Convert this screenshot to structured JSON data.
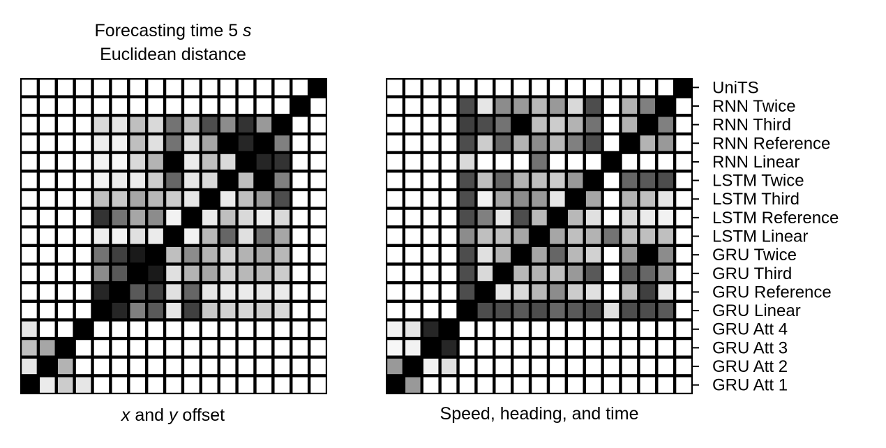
{
  "chart_data": [
    {
      "type": "heatmap",
      "title_line1": "Forecasting time 5 ",
      "title_line1_var": "s",
      "title_line2": "Euclidean distance",
      "xlabel_var1": "x",
      "xlabel_mid": " and ",
      "xlabel_var2": "y",
      "xlabel_end": " offset",
      "row_labels": [
        "UniTS",
        "RNN Twice",
        "RNN Third",
        "RNN Reference",
        "RNN Linear",
        "LSTM Twice",
        "LSTM Third",
        "LSTM Reference",
        "LSTM Linear",
        "GRU Twice",
        "GRU Third",
        "GRU Reference",
        "GRU Linear",
        "GRU Att 4",
        "GRU Att 3",
        "GRU Att 2",
        "GRU Att 1"
      ],
      "colormap": "grayscale: 0 = black, 1 = white",
      "values": [
        [
          1,
          1,
          1,
          1,
          1,
          1,
          1,
          1,
          1,
          1,
          1,
          1,
          1,
          1,
          1,
          1,
          0
        ],
        [
          1,
          1,
          1,
          1,
          1,
          1,
          1,
          1,
          1,
          1,
          1,
          1,
          1,
          1,
          1,
          0,
          1
        ],
        [
          1,
          1,
          1,
          1,
          0.85,
          0.9,
          0.75,
          0.85,
          0.45,
          0.75,
          0.3,
          0.55,
          0.2,
          0.6,
          0,
          1,
          1
        ],
        [
          1,
          1,
          1,
          1,
          0.93,
          0.95,
          0.75,
          0.88,
          0.45,
          0.88,
          0.65,
          0,
          0.15,
          0,
          0.5,
          1,
          1
        ],
        [
          1,
          1,
          1,
          1,
          0.95,
          0.97,
          0.85,
          0.7,
          0,
          0.92,
          0.75,
          0.85,
          0,
          0.15,
          0.2,
          1,
          1
        ],
        [
          1,
          1,
          1,
          1,
          0.95,
          0.93,
          0.92,
          0.8,
          0.4,
          0.9,
          0.85,
          0,
          0.75,
          0,
          0.5,
          1,
          1
        ],
        [
          1,
          1,
          1,
          1,
          0.75,
          0.78,
          0.65,
          0.72,
          0.8,
          0.9,
          0,
          0.92,
          0.75,
          0.6,
          0.3,
          1,
          1
        ],
        [
          1,
          1,
          1,
          1,
          0.2,
          0.45,
          0.65,
          0.55,
          0.95,
          0,
          0.92,
          0.75,
          0.85,
          0.92,
          0.85,
          1,
          1
        ],
        [
          1,
          1,
          1,
          1,
          0.93,
          0.95,
          0.88,
          0.92,
          0,
          0.95,
          0.72,
          0.4,
          0.88,
          0.45,
          0.65,
          1,
          1
        ],
        [
          1,
          1,
          1,
          1,
          0.45,
          0.25,
          0.1,
          0,
          0.75,
          0.55,
          0.7,
          0.82,
          0.7,
          0.65,
          0.72,
          1,
          1
        ],
        [
          1,
          1,
          1,
          1,
          0.55,
          0.35,
          0,
          0.1,
          0.88,
          0.7,
          0.65,
          0.82,
          0.72,
          0.72,
          0.8,
          1,
          1
        ],
        [
          1,
          1,
          1,
          1,
          0.15,
          0,
          0.35,
          0.25,
          0.88,
          0.4,
          0.9,
          0.92,
          0.92,
          0.9,
          0.92,
          1,
          1
        ],
        [
          1,
          1,
          1,
          1,
          0,
          0.15,
          0.5,
          0.35,
          0.9,
          0.25,
          0.78,
          0.82,
          0.84,
          0.8,
          0.85,
          1,
          1
        ],
        [
          0.9,
          1,
          1,
          0,
          1,
          1,
          1,
          1,
          1,
          1,
          1,
          1,
          1,
          1,
          1,
          1,
          1
        ],
        [
          0.75,
          0.65,
          0,
          1,
          1,
          1,
          1,
          1,
          1,
          1,
          1,
          1,
          1,
          1,
          1,
          1,
          1
        ],
        [
          0.9,
          0,
          0.7,
          1,
          1,
          1,
          1,
          1,
          1,
          1,
          1,
          1,
          1,
          1,
          1,
          1,
          1
        ],
        [
          0,
          0.92,
          0.8,
          0.9,
          1,
          1,
          1,
          1,
          1,
          1,
          1,
          1,
          1,
          1,
          1,
          1,
          1
        ]
      ]
    },
    {
      "type": "heatmap",
      "xlabel": "Speed, heading, and time",
      "row_labels": [
        "UniTS",
        "RNN Twice",
        "RNN Third",
        "RNN Reference",
        "RNN Linear",
        "LSTM Twice",
        "LSTM Third",
        "LSTM Reference",
        "LSTM Linear",
        "GRU Twice",
        "GRU Third",
        "GRU Reference",
        "GRU Linear",
        "GRU Att 4",
        "GRU Att 3",
        "GRU Att 2",
        "GRU Att 1"
      ],
      "colormap": "grayscale: 0 = black, 1 = white",
      "values": [
        [
          1,
          1,
          1,
          1,
          1,
          1,
          1,
          1,
          1,
          1,
          1,
          1,
          1,
          1,
          1,
          1,
          0
        ],
        [
          1,
          1,
          1,
          1,
          0.3,
          0.9,
          0.55,
          0.6,
          0.72,
          0.6,
          0.85,
          0.3,
          1,
          0.7,
          0.5,
          0,
          1
        ],
        [
          1,
          1,
          1,
          1,
          0.25,
          0.3,
          0.45,
          0,
          0.75,
          0.8,
          0.7,
          0.45,
          1,
          0.7,
          0,
          0.5,
          1
        ],
        [
          1,
          1,
          1,
          1,
          0.3,
          0.8,
          0.4,
          0.7,
          0.55,
          0.72,
          0.5,
          0.3,
          1,
          0,
          0.7,
          0.6,
          1
        ],
        [
          1,
          1,
          1,
          1,
          0.85,
          1,
          1,
          1,
          0.45,
          1,
          1,
          1,
          0,
          1,
          1,
          1,
          1
        ],
        [
          1,
          1,
          1,
          1,
          0.3,
          0.75,
          0.4,
          0.7,
          0.75,
          0.8,
          0.6,
          0,
          1,
          0.4,
          0.35,
          0.3,
          1
        ],
        [
          1,
          1,
          1,
          1,
          0.3,
          0.95,
          0.65,
          0.55,
          0.6,
          0.9,
          0,
          0.65,
          1,
          0.7,
          0.75,
          0.9,
          1
        ],
        [
          1,
          1,
          1,
          1,
          0.3,
          0.5,
          0.9,
          0.3,
          0.72,
          0,
          0.72,
          0.88,
          1,
          0.85,
          0.92,
          0.95,
          1
        ],
        [
          1,
          1,
          1,
          1,
          0.55,
          0.75,
          0.75,
          0.65,
          0,
          0.65,
          0.75,
          0.7,
          0.45,
          0.75,
          0.75,
          0.75,
          1
        ],
        [
          1,
          1,
          1,
          1,
          0.3,
          0.88,
          0.7,
          0,
          0.65,
          0.4,
          0.72,
          0.82,
          1,
          0.6,
          0,
          0.55,
          1
        ],
        [
          1,
          1,
          1,
          1,
          0.3,
          0.85,
          0,
          0.72,
          0.7,
          0.75,
          0.6,
          0.35,
          1,
          0.35,
          0.4,
          0.6,
          1
        ],
        [
          1,
          1,
          1,
          1,
          0.3,
          0,
          0.9,
          0.85,
          0.72,
          0.55,
          0.8,
          0.88,
          1,
          0.75,
          0.25,
          0.9,
          1
        ],
        [
          1,
          1,
          1,
          1,
          0,
          0.3,
          0.3,
          0.35,
          0.3,
          0.4,
          0.35,
          0.3,
          0.88,
          0.3,
          0.3,
          0.35,
          1
        ],
        [
          0.95,
          0.9,
          0.15,
          0,
          1,
          1,
          1,
          1,
          1,
          1,
          1,
          1,
          1,
          1,
          1,
          1,
          1
        ],
        [
          0.97,
          0.95,
          0,
          0.15,
          1,
          1,
          1,
          1,
          1,
          1,
          1,
          1,
          1,
          1,
          1,
          1,
          1
        ],
        [
          0.6,
          0,
          0.95,
          0.88,
          1,
          1,
          1,
          1,
          1,
          1,
          1,
          1,
          1,
          1,
          1,
          1,
          1
        ],
        [
          0,
          0.6,
          1,
          1,
          1,
          1,
          1,
          1,
          1,
          1,
          1,
          1,
          1,
          1,
          1,
          1,
          1
        ]
      ]
    }
  ]
}
